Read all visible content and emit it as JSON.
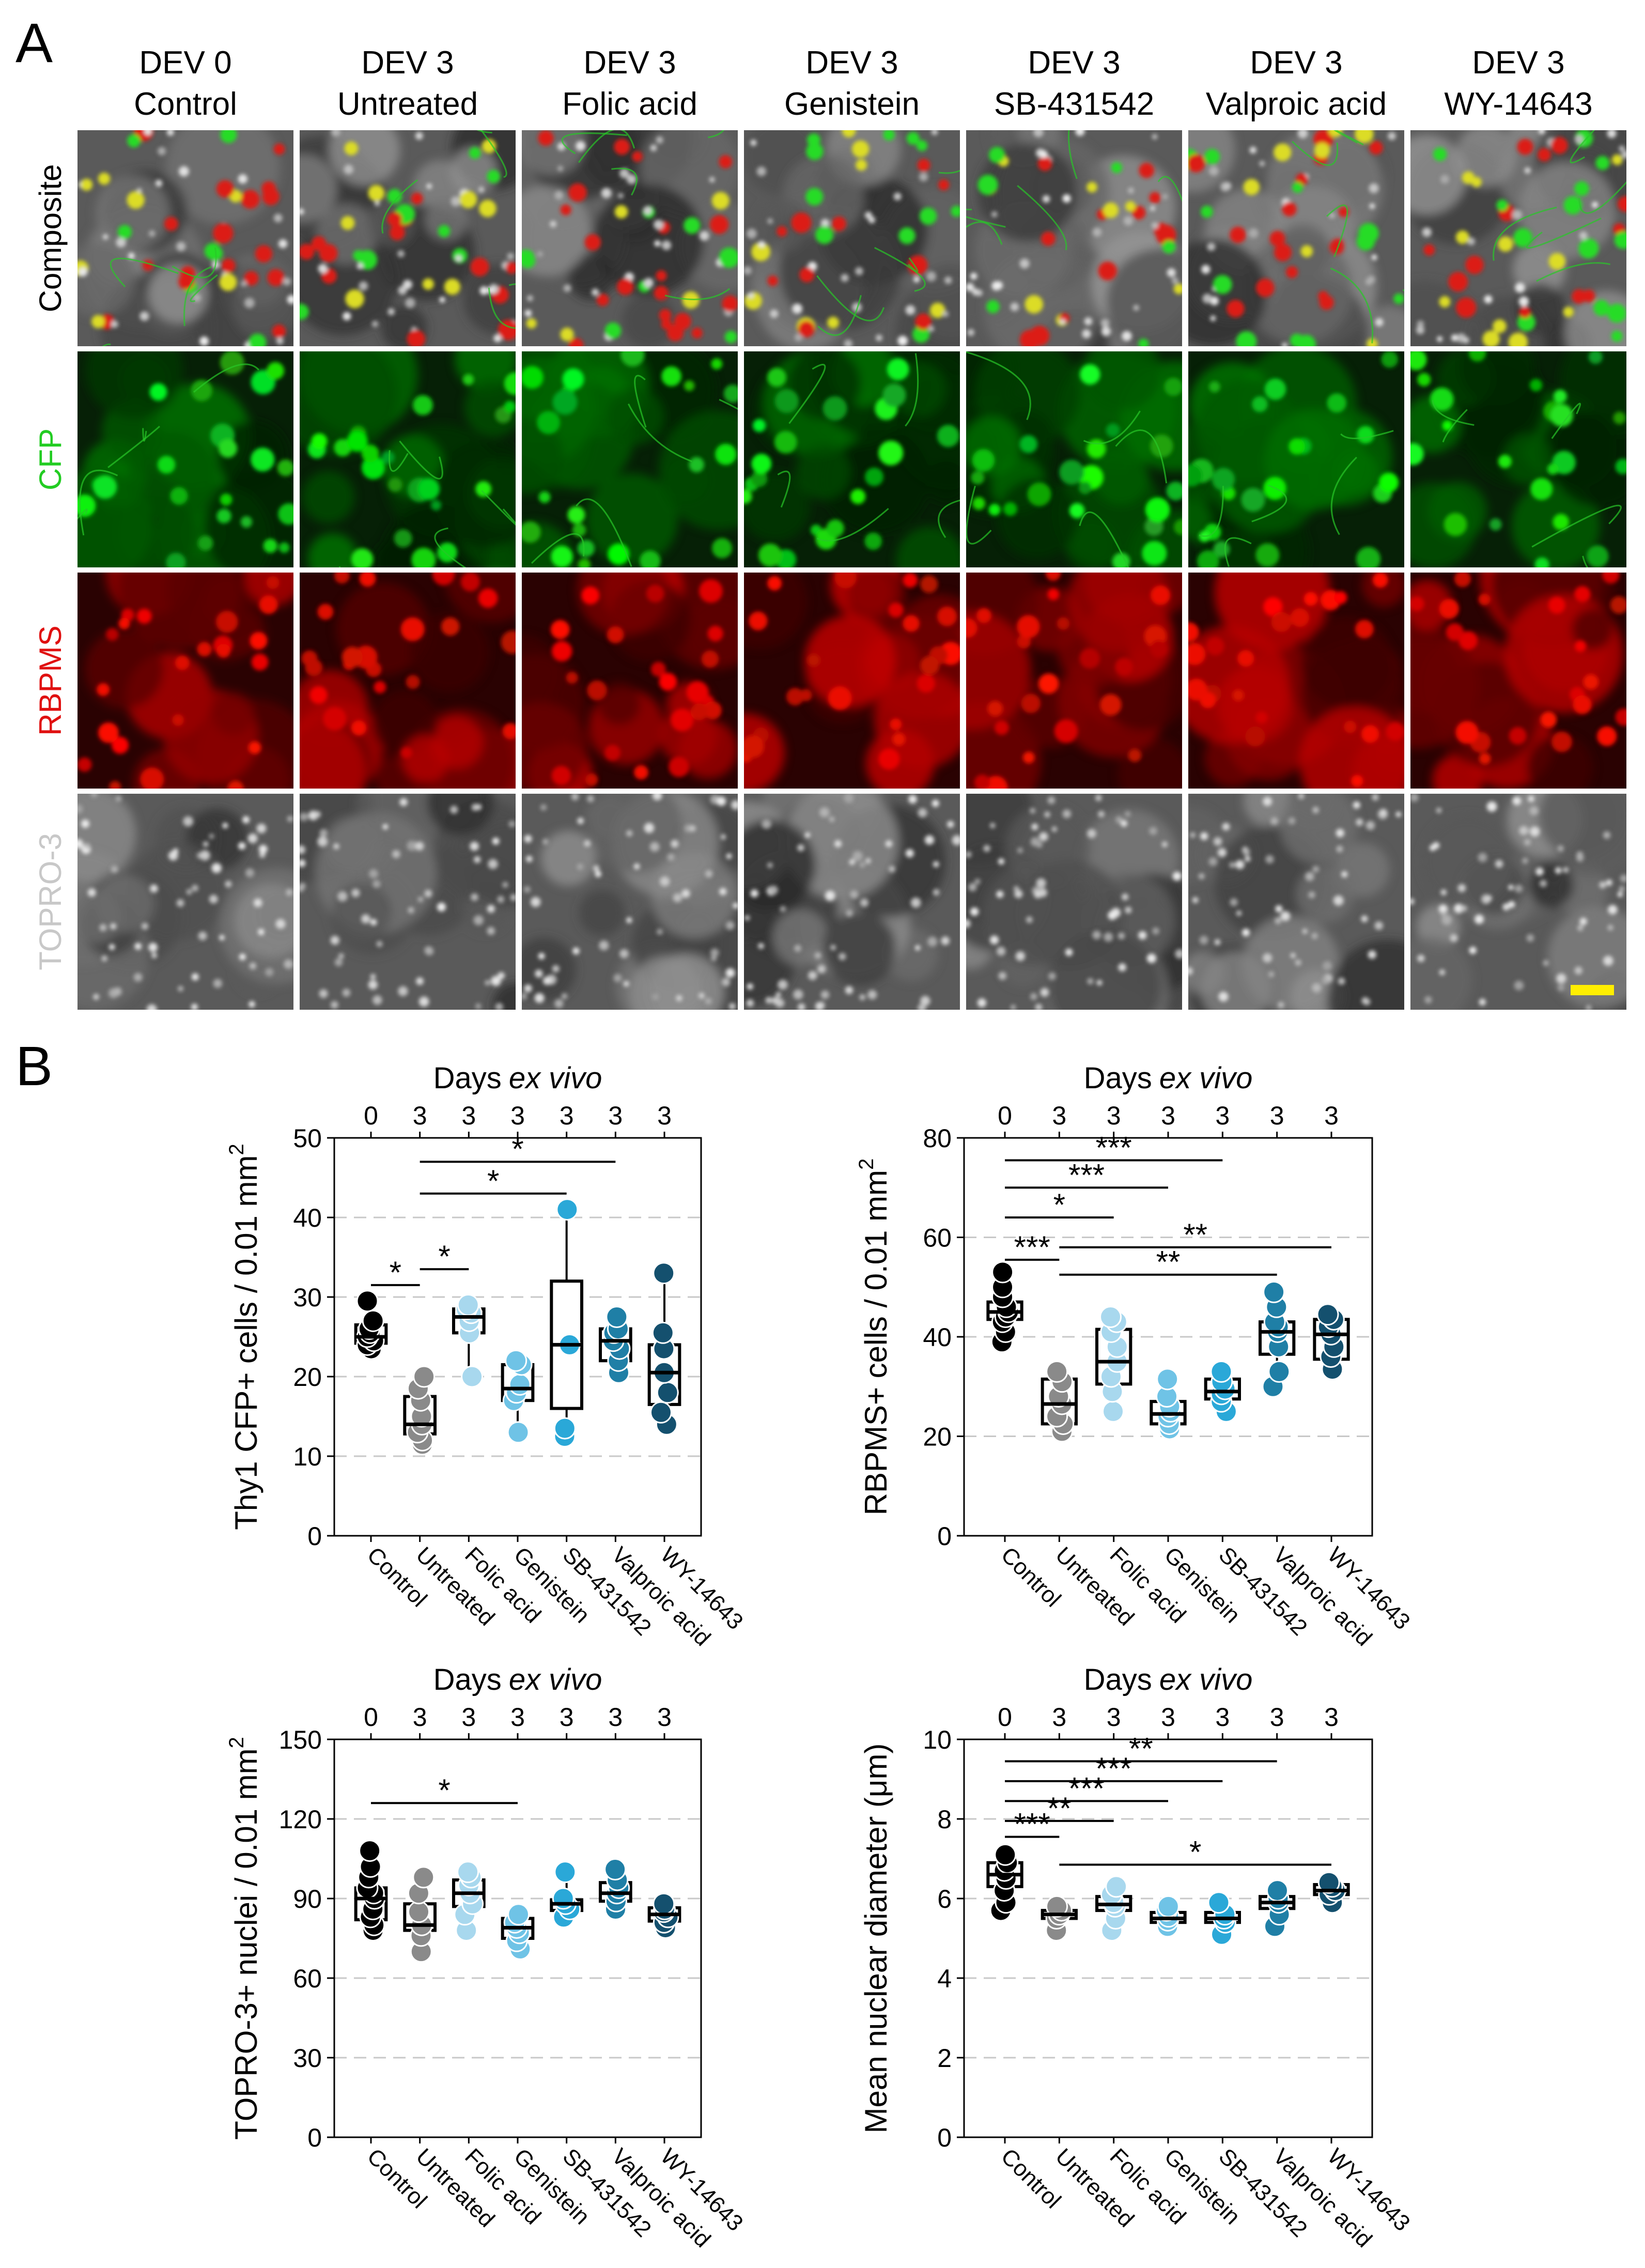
{
  "figure": {
    "panel_a_letter": "A",
    "panel_b_letter": "B",
    "columns": [
      {
        "line1": "DEV 0",
        "line2": "Control"
      },
      {
        "line1": "DEV 3",
        "line2": "Untreated"
      },
      {
        "line1": "DEV 3",
        "line2": "Folic acid"
      },
      {
        "line1": "DEV 3",
        "line2": "Genistein"
      },
      {
        "line1": "DEV 3",
        "line2": "SB-431542"
      },
      {
        "line1": "DEV 3",
        "line2": "Valproic acid"
      },
      {
        "line1": "DEV 3",
        "line2": "WY-14643"
      }
    ],
    "rows": [
      {
        "label": "Composite",
        "color": "#000000"
      },
      {
        "label": "CFP",
        "color": "#22cc22"
      },
      {
        "label": "RBPMS",
        "color": "#e01010"
      },
      {
        "label": "TOPRO-3",
        "color": "#c8c8c8"
      }
    ],
    "scale_bar_color": "#ffee00",
    "group_colors": [
      "#000000",
      "#8a8a8a",
      "#a8d8ee",
      "#6fc3e6",
      "#2aa8d8",
      "#1f7fa6",
      "#14506e"
    ]
  },
  "chart_data": [
    {
      "type": "box",
      "title_main": "Days",
      "title_italic": "ex vivo",
      "top_ticks": [
        "0",
        "3",
        "3",
        "3",
        "3",
        "3",
        "3"
      ],
      "categories": [
        "Control",
        "Untreated",
        "Folic acid",
        "Genistein",
        "SB-431542",
        "Valproic acid",
        "WY-14643"
      ],
      "ylabel_main": "Thy1 CFP+ cells / 0.01 mm",
      "ylabel_sup": "2",
      "ylim": [
        0,
        50
      ],
      "yticks": [
        "0",
        "10",
        "20",
        "30",
        "40",
        "50"
      ],
      "ytick_values": [
        0,
        10,
        20,
        30,
        40,
        50
      ],
      "gridlines": [
        10,
        20,
        30,
        40
      ],
      "boxes": [
        {
          "q1": 24.2,
          "median": 25.0,
          "q3": 26.5,
          "min": 23.5,
          "max": 29.5,
          "points": [
            23.5,
            24,
            24.5,
            25,
            25.5,
            26,
            27,
            29.5
          ]
        },
        {
          "q1": 12.8,
          "median": 14.0,
          "q3": 17.5,
          "min": 11.5,
          "max": 20.0,
          "points": [
            11.5,
            12,
            13,
            14,
            15,
            17,
            18.5,
            20
          ]
        },
        {
          "q1": 25.5,
          "median": 27.5,
          "q3": 28.5,
          "min": 20.0,
          "max": 29.0,
          "points": [
            20,
            25.5,
            27,
            28,
            28.5,
            29
          ]
        },
        {
          "q1": 17.0,
          "median": 18.5,
          "q3": 21.5,
          "min": 13.0,
          "max": 22.0,
          "points": [
            13,
            17,
            18,
            19,
            21.5,
            22
          ]
        },
        {
          "q1": 16.0,
          "median": 24.0,
          "q3": 32.0,
          "min": 12.5,
          "max": 41.0,
          "points": [
            12.5,
            13.5,
            24,
            41
          ]
        },
        {
          "q1": 22.0,
          "median": 24.5,
          "q3": 26.0,
          "min": 20.5,
          "max": 27.5,
          "points": [
            20.5,
            22,
            23.5,
            24.5,
            25.5,
            26,
            27.5
          ]
        },
        {
          "q1": 16.5,
          "median": 20.5,
          "q3": 24.0,
          "min": 14.0,
          "max": 33.0,
          "points": [
            14,
            15.5,
            18,
            20.5,
            23.5,
            25.5,
            33
          ]
        }
      ],
      "significance": [
        {
          "from": 0,
          "to": 1,
          "label": "*",
          "y": 31.5
        },
        {
          "from": 1,
          "to": 2,
          "label": "*",
          "y": 33.5
        },
        {
          "from": 1,
          "to": 4,
          "label": "*",
          "y": 43.0
        },
        {
          "from": 1,
          "to": 5,
          "label": "*",
          "y": 47.0
        }
      ]
    },
    {
      "type": "box",
      "title_main": "Days",
      "title_italic": "ex vivo",
      "top_ticks": [
        "0",
        "3",
        "3",
        "3",
        "3",
        "3",
        "3"
      ],
      "categories": [
        "Control",
        "Untreated",
        "Folic acid",
        "Genistein",
        "SB-431542",
        "Valproic acid",
        "WY-14643"
      ],
      "ylabel_main": "RBPMS+ cells / 0.01 mm",
      "ylabel_sup": "2",
      "ylim": [
        0,
        80
      ],
      "yticks": [
        "0",
        "20",
        "40",
        "60",
        "80"
      ],
      "ytick_values": [
        0,
        20,
        40,
        60,
        80
      ],
      "gridlines": [
        20,
        40,
        60
      ],
      "boxes": [
        {
          "q1": 43.5,
          "median": 45.0,
          "q3": 47.0,
          "min": 39.0,
          "max": 53.0,
          "points": [
            39,
            41,
            43,
            44,
            45,
            46,
            48,
            50,
            53
          ]
        },
        {
          "q1": 22.5,
          "median": 26.5,
          "q3": 31.5,
          "min": 21.0,
          "max": 33.0,
          "points": [
            21,
            22.5,
            24,
            26.5,
            28,
            31,
            33
          ]
        },
        {
          "q1": 30.5,
          "median": 35.0,
          "q3": 41.5,
          "min": 25.0,
          "max": 44.0,
          "points": [
            25,
            29,
            32,
            35,
            38,
            41,
            43,
            44
          ]
        },
        {
          "q1": 22.5,
          "median": 24.5,
          "q3": 27.0,
          "min": 21.5,
          "max": 31.5,
          "points": [
            21.5,
            22.5,
            24,
            25,
            26,
            28,
            31.5
          ]
        },
        {
          "q1": 27.5,
          "median": 29.0,
          "q3": 31.5,
          "min": 25.0,
          "max": 33.0,
          "points": [
            25,
            27,
            28.5,
            29.5,
            31,
            33
          ]
        },
        {
          "q1": 36.5,
          "median": 41.0,
          "q3": 43.0,
          "min": 30.0,
          "max": 49.0,
          "points": [
            30,
            33,
            38,
            41,
            42,
            43,
            46,
            49
          ]
        },
        {
          "q1": 35.5,
          "median": 40.5,
          "q3": 43.5,
          "min": 33.5,
          "max": 44.5,
          "points": [
            33.5,
            36,
            38,
            40.5,
            42,
            43.5,
            44.5
          ]
        }
      ],
      "significance": [
        {
          "from": 0,
          "to": 1,
          "label": "***",
          "y": 55.5
        },
        {
          "from": 1,
          "to": 5,
          "label": "**",
          "y": 52.5
        },
        {
          "from": 1,
          "to": 6,
          "label": "**",
          "y": 58.0
        },
        {
          "from": 0,
          "to": 2,
          "label": "*",
          "y": 64.0
        },
        {
          "from": 0,
          "to": 3,
          "label": "***",
          "y": 70.0
        },
        {
          "from": 0,
          "to": 4,
          "label": "***",
          "y": 75.5
        }
      ]
    },
    {
      "type": "box",
      "title_main": "Days",
      "title_italic": "ex vivo",
      "top_ticks": [
        "0",
        "3",
        "3",
        "3",
        "3",
        "3",
        "3"
      ],
      "categories": [
        "Control",
        "Untreated",
        "Folic acid",
        "Genistein",
        "SB-431542",
        "Valproic acid",
        "WY-14643"
      ],
      "ylabel_main": "TOPRO-3+ nuclei / 0.01 mm",
      "ylabel_sup": "2",
      "ylim": [
        0,
        150
      ],
      "yticks": [
        "0",
        "30",
        "60",
        "90",
        "120",
        "150"
      ],
      "ytick_values": [
        0,
        30,
        60,
        90,
        120,
        150
      ],
      "gridlines": [
        30,
        60,
        90,
        120
      ],
      "boxes": [
        {
          "q1": 82.0,
          "median": 90.0,
          "q3": 94.0,
          "min": 78.0,
          "max": 108.0,
          "points": [
            78,
            80,
            83,
            86,
            90,
            92,
            94,
            98,
            102,
            108
          ]
        },
        {
          "q1": 78.0,
          "median": 80.0,
          "q3": 88.0,
          "min": 70.0,
          "max": 98.0,
          "points": [
            70,
            76,
            80,
            85,
            92,
            98
          ]
        },
        {
          "q1": 87.0,
          "median": 92.0,
          "q3": 97.0,
          "min": 78.0,
          "max": 100.0,
          "points": [
            78,
            84,
            88,
            92,
            95,
            98,
            100
          ]
        },
        {
          "q1": 75.0,
          "median": 79.0,
          "q3": 82.5,
          "min": 71.0,
          "max": 84.0,
          "points": [
            71,
            74,
            77,
            79,
            81,
            84
          ]
        },
        {
          "q1": 85.5,
          "median": 88.0,
          "q3": 89.5,
          "min": 83.0,
          "max": 100.0,
          "points": [
            83,
            86,
            88,
            90,
            100
          ]
        },
        {
          "q1": 89.0,
          "median": 92.0,
          "q3": 96.0,
          "min": 86.0,
          "max": 101.0,
          "points": [
            86,
            89,
            92,
            94,
            97,
            101
          ]
        },
        {
          "q1": 81.5,
          "median": 84.0,
          "q3": 86.5,
          "min": 79.0,
          "max": 88.0,
          "points": [
            79,
            81,
            83,
            85,
            86,
            88
          ]
        }
      ],
      "significance": [
        {
          "from": 0,
          "to": 3,
          "label": "*",
          "y": 126.0
        }
      ]
    },
    {
      "type": "box",
      "title_main": "Days",
      "title_italic": "ex vivo",
      "top_ticks": [
        "0",
        "3",
        "3",
        "3",
        "3",
        "3",
        "3"
      ],
      "categories": [
        "Control",
        "Untreated",
        "Folic acid",
        "Genistein",
        "SB-431542",
        "Valproic acid",
        "WY-14643"
      ],
      "ylabel_main": "Mean nuclear diameter (μm)",
      "ylabel_sup": "",
      "ylim": [
        0,
        10
      ],
      "yticks": [
        "0",
        "2",
        "4",
        "6",
        "8",
        "10"
      ],
      "ytick_values": [
        0,
        2,
        4,
        6,
        8,
        10
      ],
      "gridlines": [
        2,
        4,
        6,
        8
      ],
      "boxes": [
        {
          "q1": 6.3,
          "median": 6.6,
          "q3": 6.9,
          "min": 5.7,
          "max": 7.1,
          "points": [
            5.7,
            5.9,
            6.2,
            6.5,
            6.7,
            6.9,
            7.1
          ]
        },
        {
          "q1": 5.5,
          "median": 5.6,
          "q3": 5.7,
          "min": 5.2,
          "max": 5.8,
          "points": [
            5.2,
            5.5,
            5.6,
            5.7,
            5.8
          ]
        },
        {
          "q1": 5.7,
          "median": 5.85,
          "q3": 6.05,
          "min": 5.2,
          "max": 6.3,
          "points": [
            5.2,
            5.5,
            5.8,
            5.9,
            6.1,
            6.3
          ]
        },
        {
          "q1": 5.4,
          "median": 5.5,
          "q3": 5.65,
          "min": 5.3,
          "max": 5.8,
          "points": [
            5.3,
            5.45,
            5.55,
            5.7,
            5.8
          ]
        },
        {
          "q1": 5.4,
          "median": 5.5,
          "q3": 5.65,
          "min": 5.1,
          "max": 5.9,
          "points": [
            5.1,
            5.4,
            5.5,
            5.6,
            5.9
          ]
        },
        {
          "q1": 5.75,
          "median": 5.9,
          "q3": 6.05,
          "min": 5.3,
          "max": 6.2,
          "points": [
            5.3,
            5.6,
            5.9,
            6.0,
            6.2
          ]
        },
        {
          "q1": 6.1,
          "median": 6.2,
          "q3": 6.35,
          "min": 5.9,
          "max": 6.4,
          "points": [
            5.9,
            6.1,
            6.2,
            6.3,
            6.4
          ]
        }
      ],
      "significance": [
        {
          "from": 0,
          "to": 1,
          "label": "***",
          "y": 7.55
        },
        {
          "from": 0,
          "to": 2,
          "label": "**",
          "y": 7.95
        },
        {
          "from": 0,
          "to": 3,
          "label": "***",
          "y": 8.45
        },
        {
          "from": 0,
          "to": 4,
          "label": "***",
          "y": 8.95
        },
        {
          "from": 0,
          "to": 5,
          "label": "**",
          "y": 9.45
        },
        {
          "from": 1,
          "to": 6,
          "label": "*",
          "y": 6.85
        }
      ]
    }
  ]
}
